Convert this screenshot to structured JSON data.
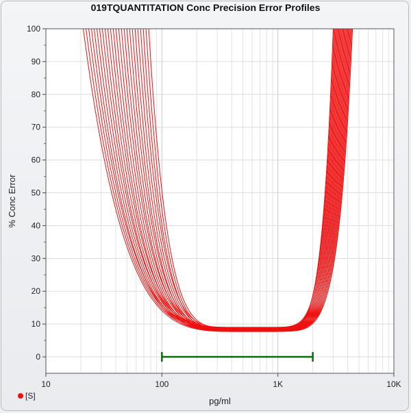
{
  "chart_data": {
    "type": "line",
    "title": "019TQUANTITATION Conc Precision Error Profiles",
    "xlabel": "pg/ml",
    "ylabel": "% Conc Error",
    "x_scale": "log",
    "xlim": [
      10,
      10000
    ],
    "ylim": [
      -5,
      100
    ],
    "x_ticks": [
      {
        "value": 10,
        "label": "10"
      },
      {
        "value": 100,
        "label": "100"
      },
      {
        "value": 1000,
        "label": "1K"
      },
      {
        "value": 10000,
        "label": "10K"
      }
    ],
    "y_ticks": [
      0,
      10,
      20,
      30,
      40,
      50,
      60,
      70,
      80,
      90,
      100
    ],
    "grid": true,
    "series_color": "#ee1111",
    "profile_count": 25,
    "profile_x_at_100_low": [
      21,
      77
    ],
    "profile_x_at_100_high": [
      3000,
      4400
    ],
    "profile_min_x": 580,
    "profile_min_y": [
      7.7,
      9.0
    ],
    "range_bar": {
      "x": [
        100,
        2000
      ],
      "y": 0,
      "color": "#116611"
    },
    "legend": {
      "position": "bottom-left",
      "label": "[S]"
    }
  }
}
